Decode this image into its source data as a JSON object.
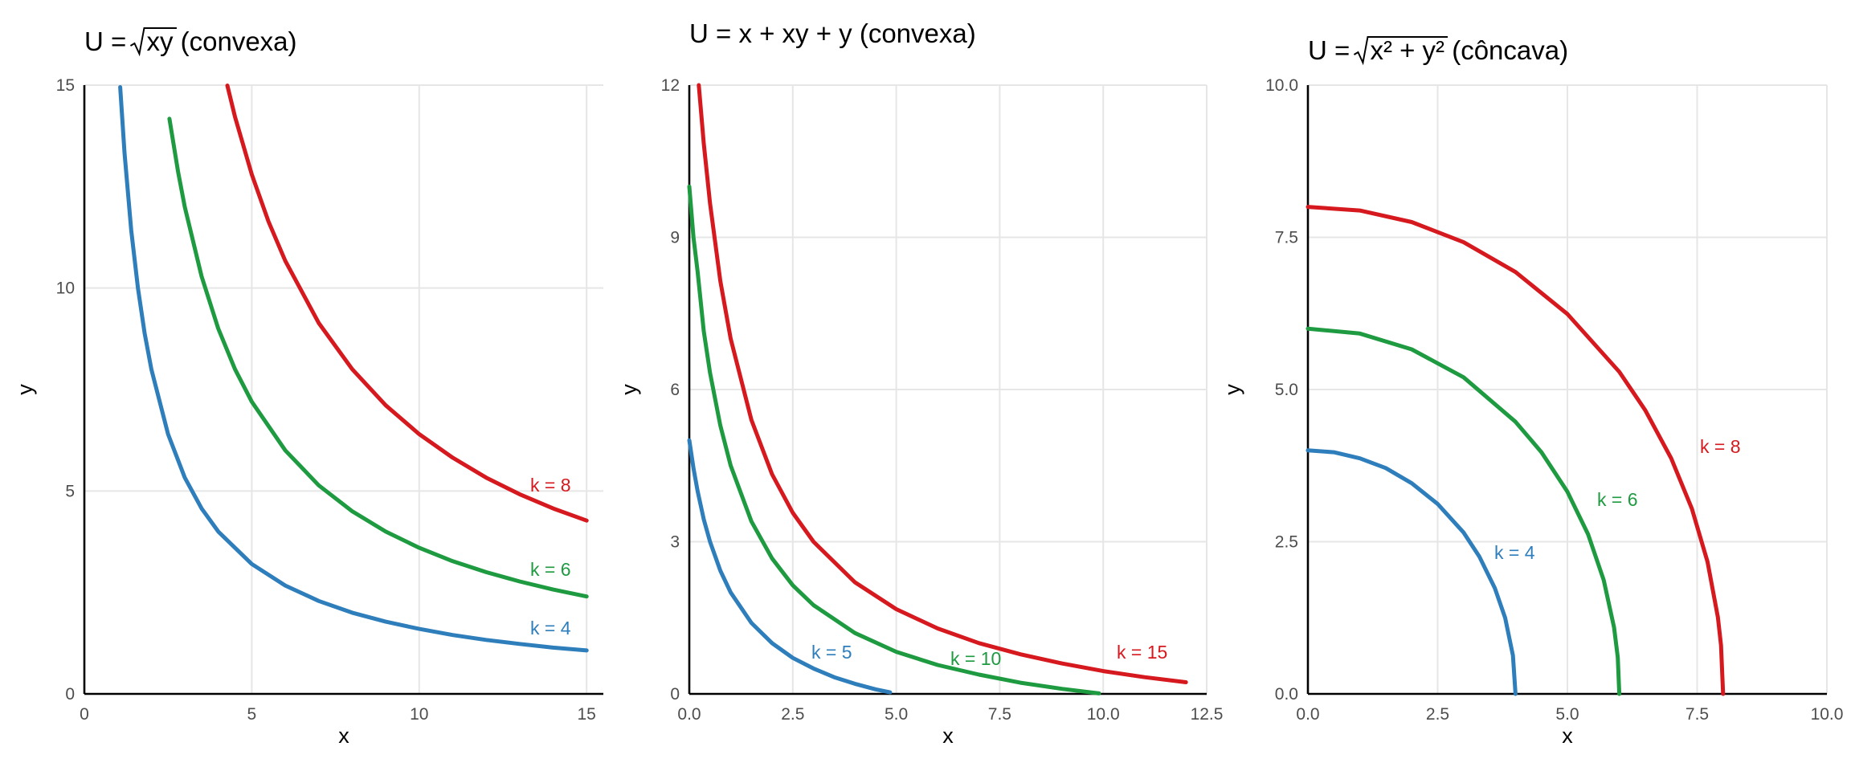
{
  "colors": {
    "k_small": "#2e7ebc",
    "k_mid": "#1e9a40",
    "k_large": "#d6191e",
    "grid": "#e6e6e6",
    "axis": "#000000",
    "tick_text": "#4d4d4d"
  },
  "chart_data": [
    {
      "type": "line",
      "title": {
        "prefix": "U = ",
        "radicand": "xy",
        "suffix": " (convexa)"
      },
      "xlabel": "x",
      "ylabel": "y",
      "xlim": [
        0,
        15.5
      ],
      "ylim": [
        0,
        15
      ],
      "x_ticks": [
        0,
        5,
        10,
        15
      ],
      "y_ticks": [
        0,
        5,
        10,
        15
      ],
      "x_tick_labels": [
        "0",
        "5",
        "10",
        "15"
      ],
      "y_tick_labels": [
        "0",
        "5",
        "10",
        "15"
      ],
      "grid": true,
      "formula": "sqrt(x*y) = k",
      "series": [
        {
          "label": "k = 4",
          "k": 4,
          "color": "#2e7ebc",
          "x": [
            1.07,
            1.2,
            1.4,
            1.6,
            1.8,
            2,
            2.5,
            3,
            3.5,
            4,
            5,
            6,
            7,
            8,
            9,
            10,
            11,
            12,
            13,
            14,
            15
          ],
          "y": [
            14.95,
            13.33,
            11.43,
            10,
            8.89,
            8,
            6.4,
            5.33,
            4.57,
            4,
            3.2,
            2.67,
            2.29,
            2,
            1.78,
            1.6,
            1.45,
            1.33,
            1.23,
            1.14,
            1.07
          ]
        },
        {
          "label": "k = 6",
          "k": 6,
          "color": "#1e9a40",
          "x": [
            2.54,
            2.8,
            3,
            3.5,
            4,
            4.5,
            5,
            6,
            7,
            8,
            9,
            10,
            11,
            12,
            13,
            14,
            15
          ],
          "y": [
            14.17,
            12.86,
            12,
            10.29,
            9,
            8,
            7.2,
            6,
            5.14,
            4.5,
            4,
            3.6,
            3.27,
            3,
            2.77,
            2.57,
            2.4
          ]
        },
        {
          "label": "k = 8",
          "k": 8,
          "color": "#d6191e",
          "x": [
            4.27,
            4.5,
            5,
            5.5,
            6,
            7,
            8,
            9,
            10,
            11,
            12,
            13,
            14,
            15
          ],
          "y": [
            14.99,
            14.22,
            12.8,
            11.64,
            10.67,
            9.14,
            8,
            7.11,
            6.4,
            5.82,
            5.33,
            4.92,
            4.57,
            4.27
          ]
        }
      ]
    },
    {
      "type": "line",
      "title": {
        "text": "U = x + xy + y (convexa)"
      },
      "xlabel": "x",
      "ylabel": "y",
      "xlim": [
        0,
        12.5
      ],
      "ylim": [
        0,
        12
      ],
      "x_ticks": [
        0,
        2.5,
        5,
        7.5,
        10,
        12.5
      ],
      "y_ticks": [
        0,
        3,
        6,
        9,
        12
      ],
      "x_tick_labels": [
        "0.0",
        "2.5",
        "5.0",
        "7.5",
        "10.0",
        "12.5"
      ],
      "y_tick_labels": [
        "0",
        "3",
        "6",
        "9",
        "12"
      ],
      "grid": true,
      "formula": "x + x*y + y = k",
      "series": [
        {
          "label": "k = 5",
          "k": 5,
          "color": "#2e7ebc",
          "x": [
            0,
            0.1,
            0.2,
            0.35,
            0.5,
            0.75,
            1,
            1.5,
            2,
            2.5,
            3,
            3.5,
            4,
            4.5,
            4.85
          ],
          "y": [
            5,
            4.45,
            4,
            3.44,
            3,
            2.43,
            2,
            1.4,
            1,
            0.71,
            0.5,
            0.33,
            0.2,
            0.09,
            0.03
          ]
        },
        {
          "label": "k = 10",
          "k": 10,
          "color": "#1e9a40",
          "x": [
            0,
            0.1,
            0.2,
            0.35,
            0.5,
            0.75,
            1,
            1.5,
            2,
            2.5,
            3,
            4,
            5,
            6,
            7,
            8,
            9,
            9.9
          ],
          "y": [
            10,
            9,
            8.33,
            7.15,
            6.33,
            5.29,
            4.5,
            3.4,
            2.67,
            2.14,
            1.75,
            1.2,
            0.83,
            0.57,
            0.38,
            0.22,
            0.1,
            0.01
          ]
        },
        {
          "label": "k = 15",
          "k": 15,
          "color": "#d6191e",
          "x": [
            0.23,
            0.35,
            0.5,
            0.75,
            1,
            1.5,
            2,
            2.5,
            3,
            4,
            5,
            6,
            7,
            8,
            9,
            10,
            11,
            12
          ],
          "y": [
            12,
            10.85,
            9.67,
            8.14,
            7,
            5.4,
            4.33,
            3.57,
            3,
            2.2,
            1.67,
            1.29,
            1,
            0.78,
            0.6,
            0.45,
            0.33,
            0.23
          ]
        }
      ]
    },
    {
      "type": "line",
      "title": {
        "prefix": "U = ",
        "radicand": "x² + y²",
        "suffix": " (côncava)"
      },
      "xlabel": "x",
      "ylabel": "y",
      "xlim": [
        0,
        10
      ],
      "ylim": [
        0,
        10
      ],
      "x_ticks": [
        0,
        2.5,
        5,
        7.5,
        10
      ],
      "y_ticks": [
        0,
        2.5,
        5,
        7.5,
        10
      ],
      "x_tick_labels": [
        "0.0",
        "2.5",
        "5.0",
        "7.5",
        "10.0"
      ],
      "y_tick_labels": [
        "0.0",
        "2.5",
        "5.0",
        "7.5",
        "10.0"
      ],
      "grid": true,
      "formula": "sqrt(x^2 + y^2) = k",
      "series": [
        {
          "label": "k = 4",
          "k": 4,
          "color": "#2e7ebc",
          "x": [
            0,
            0.5,
            1,
            1.5,
            2,
            2.5,
            3,
            3.3,
            3.6,
            3.8,
            3.95,
            4
          ],
          "y": [
            4,
            3.97,
            3.87,
            3.71,
            3.46,
            3.12,
            2.65,
            2.26,
            1.74,
            1.25,
            0.63,
            0
          ]
        },
        {
          "label": "k = 6",
          "k": 6,
          "color": "#1e9a40",
          "x": [
            0,
            1,
            2,
            3,
            4,
            4.5,
            5,
            5.4,
            5.7,
            5.9,
            5.97,
            6
          ],
          "y": [
            6,
            5.92,
            5.66,
            5.2,
            4.47,
            3.97,
            3.32,
            2.62,
            1.87,
            1.09,
            0.6,
            0
          ]
        },
        {
          "label": "k = 8",
          "k": 8,
          "color": "#d6191e",
          "x": [
            0,
            1,
            2,
            3,
            4,
            5,
            6,
            6.5,
            7,
            7.4,
            7.7,
            7.9,
            7.96,
            8
          ],
          "y": [
            8,
            7.94,
            7.75,
            7.42,
            6.93,
            6.24,
            5.29,
            4.66,
            3.87,
            3.04,
            2.17,
            1.26,
            0.8,
            0
          ]
        }
      ]
    }
  ]
}
